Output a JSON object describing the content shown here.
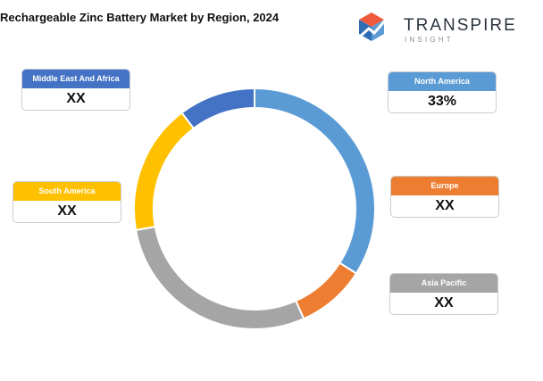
{
  "title": "Rechargeable Zinc Battery Market by Region, 2024",
  "logo": {
    "name": "TRANSPIRE",
    "sub": "INSIGHT"
  },
  "chart_data": {
    "type": "pie",
    "variant": "donut",
    "start_angle_deg": 0,
    "categories": [
      "North America",
      "Asia Pacific",
      "Europe",
      "South America",
      "Middle East And Africa"
    ],
    "slice_order": [
      "North America",
      "Europe",
      "Asia Pacific",
      "South America",
      "Middle East And Africa"
    ],
    "values": [
      33,
      28,
      9,
      17,
      10
    ],
    "colors": {
      "North America": "#5b9bd5",
      "Europe": "#ed7d31",
      "Asia Pacific": "#a5a5a5",
      "South America": "#ffc000",
      "Middle East And Africa": "#4472c4"
    }
  },
  "labels": {
    "north_america": {
      "name": "North America",
      "value": "33%"
    },
    "europe": {
      "name": "Europe",
      "value": "XX"
    },
    "asia_pacific": {
      "name": "Asia Pacific",
      "value": "XX"
    },
    "south_america": {
      "name": "South America",
      "value": "XX"
    },
    "mea": {
      "name": "Middle East And Africa",
      "value": "XX"
    }
  }
}
